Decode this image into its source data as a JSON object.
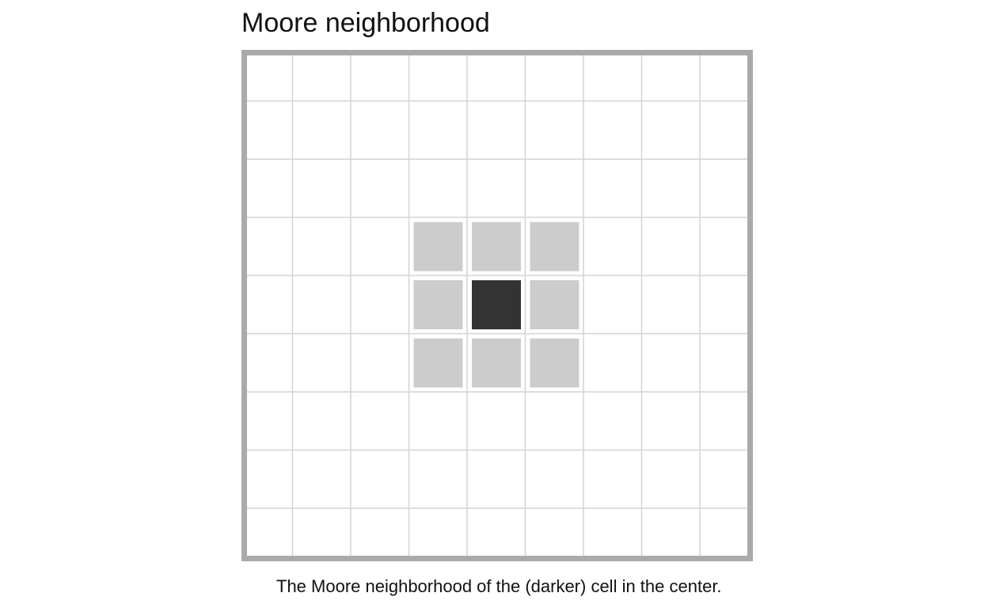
{
  "title": "Moore neighborhood",
  "caption": "The Moore neighborhood of the (darker) cell in the center.",
  "grid": {
    "rows": 9,
    "cols": 9,
    "center": {
      "row": 4,
      "col": 4
    },
    "neighborhood_radius": 1
  },
  "colors": {
    "frame": "#aaaaaa",
    "grid_lines": "#d4d4d4",
    "center_cell": "#333333",
    "neighbor_cell": "#cccccc",
    "background": "#ffffff"
  }
}
